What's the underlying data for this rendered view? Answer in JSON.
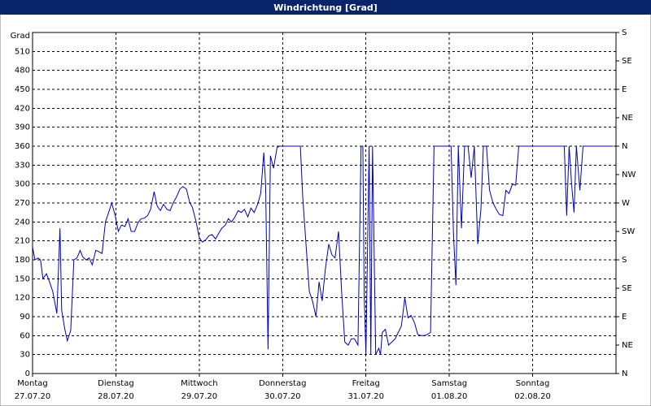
{
  "chart_data": {
    "type": "line",
    "title": "Windrichtung [Grad]",
    "y_unit": "Grad",
    "grid": true,
    "xlim": [
      0,
      168
    ],
    "xticks": [
      {
        "value": 0,
        "label": "Montag",
        "date": "27.07.20"
      },
      {
        "value": 24,
        "label": "Dienstag",
        "date": "28.07.20"
      },
      {
        "value": 48,
        "label": "Mittwoch",
        "date": "29.07.20"
      },
      {
        "value": 72,
        "label": "Donnerstag",
        "date": "30.07.20"
      },
      {
        "value": 96,
        "label": "Freitag",
        "date": "31.07.20"
      },
      {
        "value": 120,
        "label": "Samstag",
        "date": "01.08.20"
      },
      {
        "value": 144,
        "label": "Sonntag",
        "date": "02.08.20"
      }
    ],
    "ylim": [
      0,
      540
    ],
    "yticks": [
      0,
      30,
      60,
      90,
      120,
      150,
      180,
      210,
      240,
      270,
      300,
      330,
      360,
      390,
      420,
      450,
      480,
      510
    ],
    "y2lim": [
      0,
      540
    ],
    "y2ticks": [
      {
        "value": 0,
        "label": "N"
      },
      {
        "value": 45,
        "label": "NE"
      },
      {
        "value": 90,
        "label": "E"
      },
      {
        "value": 135,
        "label": "SE"
      },
      {
        "value": 180,
        "label": "S"
      },
      {
        "value": 225,
        "label": "SW"
      },
      {
        "value": 270,
        "label": "W"
      },
      {
        "value": 315,
        "label": "NW"
      },
      {
        "value": 360,
        "label": "N"
      },
      {
        "value": 405,
        "label": "NE"
      },
      {
        "value": 450,
        "label": "E"
      },
      {
        "value": 495,
        "label": "SE"
      },
      {
        "value": 540,
        "label": "S"
      }
    ],
    "series": [
      {
        "color": "#0000c0",
        "x": [
          0,
          0.7,
          1.6,
          2.3,
          3.0,
          4.0,
          4.9,
          5.8,
          7.0,
          7.9,
          8.4,
          9.3,
          10.0,
          11.0,
          11.9,
          12.8,
          13.7,
          14.4,
          15.4,
          16.3,
          17.2,
          18.2,
          19.1,
          20.0,
          21.0,
          21.9,
          22.8,
          23.8,
          24.7,
          25.6,
          26.6,
          27.5,
          28.4,
          29.4,
          30.3,
          31.2,
          32.2,
          33.1,
          34.0,
          35.0,
          35.9,
          36.8,
          37.7,
          38.7,
          39.6,
          40.5,
          41.5,
          42.4,
          43.3,
          44.3,
          45.2,
          46.1,
          47.1,
          48.0,
          48.9,
          49.9,
          50.8,
          51.7,
          52.7,
          53.6,
          54.5,
          55.5,
          56.4,
          57.3,
          58.3,
          59.2,
          60.1,
          61.0,
          62.0,
          62.9,
          63.8,
          64.8,
          65.7,
          66.6,
          67.1,
          67.8,
          68.5,
          69.4,
          70.4,
          71.1,
          72.2,
          77.1,
          77.8,
          78.8,
          79.7,
          80.6,
          81.6,
          82.5,
          83.4,
          84.3,
          85.3,
          86.2,
          87.1,
          88.1,
          89.0,
          89.9,
          90.9,
          91.8,
          92.7,
          93.7,
          94.6,
          95.1,
          95.5,
          96.0,
          96.9,
          97.4,
          97.9,
          98.8,
          99.7,
          100.2,
          100.7,
          101.6,
          102.5,
          103.5,
          104.4,
          105.3,
          106.2,
          107.2,
          108.1,
          109.0,
          110.0,
          110.9,
          111.8,
          112.8,
          113.7,
          114.6,
          115.6,
          116.5,
          120.5,
          121.2,
          121.9,
          122.6,
          123.5,
          124.4,
          125.4,
          126.3,
          127.2,
          128.2,
          129.1,
          129.8,
          130.7,
          131.6,
          132.6,
          133.5,
          134.4,
          135.4,
          136.3,
          137.2,
          138.2,
          139.1,
          140.0,
          141.0,
          153.1,
          153.8,
          154.5,
          155.2,
          155.9,
          156.6,
          157.6,
          158.5,
          167.1
        ],
        "values": [
          200,
          180,
          183,
          180,
          150,
          158,
          145,
          130,
          95,
          230,
          100,
          70,
          52,
          68,
          180,
          183,
          195,
          185,
          180,
          183,
          172,
          195,
          193,
          190,
          240,
          255,
          270,
          250,
          225,
          235,
          233,
          245,
          225,
          225,
          238,
          245,
          246,
          250,
          260,
          288,
          265,
          258,
          268,
          260,
          258,
          270,
          280,
          292,
          296,
          292,
          272,
          262,
          240,
          215,
          208,
          212,
          218,
          220,
          213,
          222,
          230,
          235,
          245,
          240,
          248,
          258,
          255,
          260,
          248,
          262,
          255,
          268,
          285,
          350,
          300,
          38,
          345,
          325,
          358,
          360,
          360,
          360,
          280,
          200,
          130,
          115,
          90,
          145,
          115,
          165,
          205,
          188,
          183,
          225,
          130,
          50,
          45,
          55,
          55,
          45,
          360,
          360,
          120,
          30,
          360,
          30,
          360,
          30,
          40,
          30,
          65,
          70,
          45,
          50,
          55,
          65,
          75,
          120,
          88,
          92,
          80,
          62,
          60,
          60,
          62,
          65,
          360,
          360,
          360,
          220,
          140,
          360,
          230,
          360,
          360,
          310,
          360,
          205,
          260,
          360,
          360,
          290,
          270,
          260,
          252,
          250,
          290,
          285,
          300,
          298,
          360,
          360,
          360,
          250,
          360,
          300,
          255,
          360,
          290,
          360,
          360
        ]
      }
    ]
  }
}
